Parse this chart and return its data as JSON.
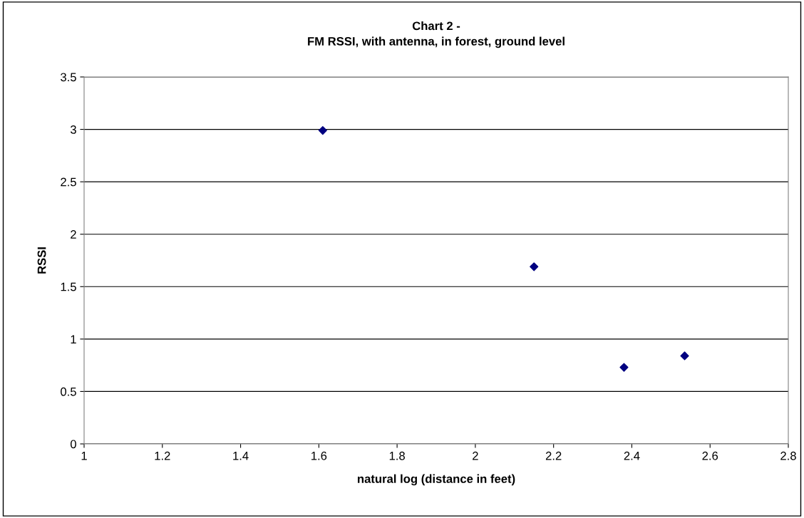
{
  "chart_data": {
    "type": "scatter",
    "title": "Chart 2 -\nFM RSSI, with antenna, in forest, ground level",
    "xlabel": "natural log (distance in feet)",
    "ylabel": "RSSI",
    "x": [
      1.61,
      2.15,
      2.38,
      2.535
    ],
    "series": [
      {
        "color": "#000080",
        "values": [
          2.99,
          1.69,
          0.73,
          0.84
        ]
      }
    ],
    "xlim": [
      1,
      2.8
    ],
    "xticks": [
      1,
      1.2,
      1.4,
      1.6,
      1.8,
      2,
      2.2,
      2.4,
      2.6,
      2.8
    ],
    "ylim": [
      0,
      3.5
    ],
    "yticks": [
      0,
      0.5,
      1,
      1.5,
      2,
      2.5,
      3,
      3.5
    ],
    "grid": "y",
    "marker": "diamond",
    "legend": false
  }
}
